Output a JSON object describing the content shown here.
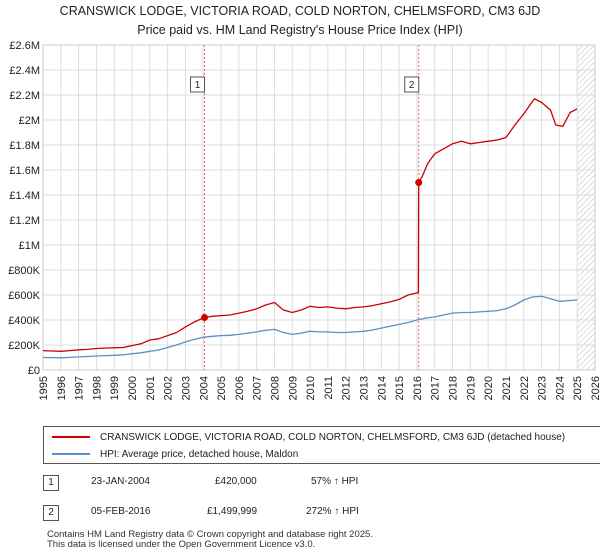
{
  "chart_data": {
    "type": "line",
    "title": "CRANSWICK LODGE, VICTORIA ROAD, COLD NORTON, CHELMSFORD, CM3 6JD",
    "subtitle": "Price paid vs. HM Land Registry's House Price Index (HPI)",
    "xlabel": "",
    "ylabel": "",
    "xlim": [
      1995,
      2026
    ],
    "ylim": [
      0,
      2600000
    ],
    "x_ticks": [
      "1995",
      "1996",
      "1997",
      "1998",
      "1999",
      "2000",
      "2001",
      "2002",
      "2003",
      "2004",
      "2005",
      "2006",
      "2007",
      "2008",
      "2009",
      "2010",
      "2011",
      "2012",
      "2013",
      "2014",
      "2015",
      "2016",
      "2017",
      "2018",
      "2019",
      "2020",
      "2021",
      "2022",
      "2023",
      "2024",
      "2025",
      "2026"
    ],
    "y_ticks": [
      {
        "value": 0,
        "label": "£0"
      },
      {
        "value": 200000,
        "label": "£200K"
      },
      {
        "value": 400000,
        "label": "£400K"
      },
      {
        "value": 600000,
        "label": "£600K"
      },
      {
        "value": 800000,
        "label": "£800K"
      },
      {
        "value": 1000000,
        "label": "£1M"
      },
      {
        "value": 1200000,
        "label": "£1.2M"
      },
      {
        "value": 1400000,
        "label": "£1.4M"
      },
      {
        "value": 1600000,
        "label": "£1.6M"
      },
      {
        "value": 1800000,
        "label": "£1.8M"
      },
      {
        "value": 2000000,
        "label": "£2M"
      },
      {
        "value": 2200000,
        "label": "£2.2M"
      },
      {
        "value": 2400000,
        "label": "£2.4M"
      },
      {
        "value": 2600000,
        "label": "£2.6M"
      }
    ],
    "grid": true,
    "hatch_from": 2025.0,
    "series": [
      {
        "name": "CRANSWICK LODGE, VICTORIA ROAD, COLD NORTON, CHELMSFORD, CM3 6JD (detached house)",
        "color": "#cc0000",
        "x": [
          1995.0,
          1995.5,
          1996.0,
          1996.5,
          1997.0,
          1997.5,
          1998.0,
          1998.5,
          1999.0,
          1999.5,
          2000.0,
          2000.5,
          2001.0,
          2001.5,
          2002.0,
          2002.5,
          2003.0,
          2003.5,
          2004.07,
          2004.5,
          2005.0,
          2005.5,
          2006.0,
          2006.5,
          2007.0,
          2007.5,
          2008.0,
          2008.5,
          2009.0,
          2009.5,
          2010.0,
          2010.5,
          2011.0,
          2011.5,
          2012.0,
          2012.5,
          2013.0,
          2013.5,
          2014.0,
          2014.5,
          2015.0,
          2015.5,
          2016.08,
          2016.1,
          2016.3,
          2016.6,
          2017.0,
          2017.5,
          2018.0,
          2018.5,
          2019.0,
          2019.5,
          2020.0,
          2020.5,
          2021.0,
          2021.5,
          2022.0,
          2022.3,
          2022.6,
          2023.0,
          2023.5,
          2023.8,
          2024.2,
          2024.6,
          2025.0
        ],
        "values": [
          155000,
          152000,
          150000,
          155000,
          162000,
          165000,
          172000,
          176000,
          178000,
          180000,
          195000,
          210000,
          240000,
          250000,
          275000,
          300000,
          345000,
          385000,
          420000,
          430000,
          435000,
          440000,
          455000,
          470000,
          490000,
          520000,
          540000,
          480000,
          460000,
          480000,
          510000,
          500000,
          505000,
          495000,
          490000,
          500000,
          505000,
          515000,
          530000,
          545000,
          565000,
          600000,
          620000,
          1499999,
          1550000,
          1650000,
          1730000,
          1770000,
          1810000,
          1830000,
          1810000,
          1820000,
          1830000,
          1840000,
          1860000,
          1960000,
          2050000,
          2110000,
          2170000,
          2140000,
          2080000,
          1960000,
          1950000,
          2060000,
          2090000
        ]
      },
      {
        "name": "HPI: Average price, detached house, Maldon",
        "color": "#5b8fc7",
        "x": [
          1995.0,
          1995.5,
          1996.0,
          1996.5,
          1997.0,
          1997.5,
          1998.0,
          1998.5,
          1999.0,
          1999.5,
          2000.0,
          2000.5,
          2001.0,
          2001.5,
          2002.0,
          2002.5,
          2003.0,
          2003.5,
          2004.0,
          2004.5,
          2005.0,
          2005.5,
          2006.0,
          2006.5,
          2007.0,
          2007.5,
          2008.0,
          2008.5,
          2009.0,
          2009.5,
          2010.0,
          2010.5,
          2011.0,
          2011.5,
          2012.0,
          2012.5,
          2013.0,
          2013.5,
          2014.0,
          2014.5,
          2015.0,
          2015.5,
          2016.0,
          2016.5,
          2017.0,
          2017.5,
          2018.0,
          2018.5,
          2019.0,
          2019.5,
          2020.0,
          2020.5,
          2021.0,
          2021.5,
          2022.0,
          2022.5,
          2023.0,
          2023.5,
          2024.0,
          2024.5,
          2025.0
        ],
        "values": [
          100000,
          99000,
          98000,
          101000,
          105000,
          108000,
          112000,
          115000,
          118000,
          122000,
          130000,
          138000,
          150000,
          160000,
          180000,
          200000,
          225000,
          245000,
          262000,
          270000,
          275000,
          278000,
          285000,
          295000,
          305000,
          318000,
          325000,
          300000,
          285000,
          295000,
          310000,
          305000,
          305000,
          300000,
          300000,
          305000,
          310000,
          320000,
          335000,
          350000,
          365000,
          380000,
          400000,
          415000,
          425000,
          440000,
          455000,
          460000,
          460000,
          465000,
          470000,
          475000,
          490000,
          520000,
          560000,
          585000,
          590000,
          570000,
          550000,
          555000,
          560000
        ]
      }
    ],
    "markers": [
      {
        "id": "1",
        "x": 2004.07,
        "value": 420000
      },
      {
        "id": "2",
        "x": 2016.1,
        "value": 1499999
      }
    ]
  },
  "legend": {
    "property_label": "CRANSWICK LODGE, VICTORIA ROAD, COLD NORTON, CHELMSFORD, CM3 6JD (detached house)",
    "hpi_label": "HPI: Average price, detached house, Maldon"
  },
  "transactions": [
    {
      "id": "1",
      "date": "23-JAN-2004",
      "price": "£420,000",
      "hpi": "57% ↑ HPI"
    },
    {
      "id": "2",
      "date": "05-FEB-2016",
      "price": "£1,499,999",
      "hpi": "272% ↑ HPI"
    }
  ],
  "footer": {
    "line1": "Contains HM Land Registry data © Crown copyright and database right 2025.",
    "line2": "This data is licensed under the Open Government Licence v3.0."
  },
  "colors": {
    "property": "#cc0000",
    "hpi": "#5b8fc7",
    "grid": "#dddddd",
    "marker_line": "#e07070"
  }
}
